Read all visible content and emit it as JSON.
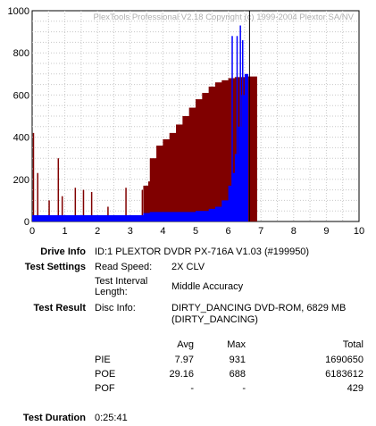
{
  "chart_data": {
    "type": "bar",
    "title": "PlexTools Professional V2.18 Copyright (c) 1999-2004 Plextor SA/NV",
    "xlim": [
      0,
      10
    ],
    "ylim": [
      0,
      1000
    ],
    "xticks": [
      "0",
      "1",
      "2",
      "3",
      "4",
      "5",
      "6",
      "7",
      "8",
      "9",
      "10"
    ],
    "yticks": [
      "0",
      "200",
      "400",
      "600",
      "800",
      "1000"
    ],
    "grid": true,
    "marker_x": 6.65,
    "series": [
      {
        "color": "#800000",
        "points": [
          [
            0.02,
            420
          ],
          [
            0.15,
            230
          ],
          [
            0.5,
            100
          ],
          [
            0.78,
            300
          ],
          [
            0.9,
            120
          ],
          [
            1.3,
            160
          ],
          [
            1.55,
            150
          ],
          [
            1.8,
            140
          ],
          [
            2.3,
            70
          ],
          [
            2.85,
            160
          ],
          [
            3.35,
            150
          ],
          [
            3.55,
            190
          ],
          [
            3.4,
            170
          ],
          [
            3.6,
            300
          ],
          [
            3.8,
            360
          ],
          [
            4.0,
            390
          ],
          [
            4.2,
            420
          ],
          [
            4.4,
            460
          ],
          [
            4.6,
            500
          ],
          [
            4.8,
            540
          ],
          [
            5.0,
            580
          ],
          [
            5.2,
            610
          ],
          [
            5.4,
            640
          ],
          [
            5.6,
            660
          ],
          [
            5.8,
            670
          ],
          [
            6.0,
            680
          ],
          [
            6.2,
            685
          ],
          [
            6.5,
            688
          ]
        ]
      },
      {
        "color": "#0000ff",
        "points": [
          [
            0.0,
            30
          ],
          [
            0.5,
            30
          ],
          [
            1.0,
            30
          ],
          [
            1.5,
            30
          ],
          [
            2.0,
            30
          ],
          [
            2.5,
            30
          ],
          [
            3.0,
            30
          ],
          [
            3.4,
            40
          ],
          [
            3.6,
            45
          ],
          [
            3.8,
            45
          ],
          [
            4.0,
            45
          ],
          [
            4.5,
            45
          ],
          [
            5.0,
            50
          ],
          [
            5.4,
            60
          ],
          [
            5.6,
            70
          ],
          [
            5.8,
            100
          ],
          [
            6.0,
            170
          ],
          [
            6.1,
            230
          ],
          [
            6.2,
            320
          ],
          [
            6.3,
            450
          ],
          [
            6.4,
            600
          ],
          [
            6.5,
            700
          ]
        ]
      }
    ],
    "spikes": [
      [
        6.1,
        880
      ],
      [
        6.25,
        880
      ],
      [
        6.35,
        930
      ],
      [
        6.42,
        860
      ]
    ]
  },
  "info": {
    "drive_info_label": "Drive Info",
    "drive_info_value": "ID:1 PLEXTOR DVDR PX-716A V1.03 (#199950)",
    "test_settings_label": "Test Settings",
    "read_speed_label": "Read Speed:",
    "read_speed_value": "2X CLV",
    "interval_label_1": "Test Interval",
    "interval_label_2": "Length:",
    "interval_value": "Middle Accuracy",
    "test_result_label": "Test Result",
    "disc_info_label": "Disc Info:",
    "disc_info_value_1": "DIRTY_DANCING DVD-ROM, 6829 MB",
    "disc_info_value_2": "(DIRTY_DANCING)",
    "duration_label": "Test Duration",
    "duration_value": "0:25:41"
  },
  "results": {
    "headers": {
      "avg": "Avg",
      "max": "Max",
      "total": "Total"
    },
    "rows": [
      {
        "name": "PIE",
        "avg": "7.97",
        "max": "931",
        "total": "1690650"
      },
      {
        "name": "POE",
        "avg": "29.16",
        "max": "688",
        "total": "6183612"
      },
      {
        "name": "POF",
        "avg": "-",
        "max": "-",
        "total": "429"
      }
    ]
  }
}
